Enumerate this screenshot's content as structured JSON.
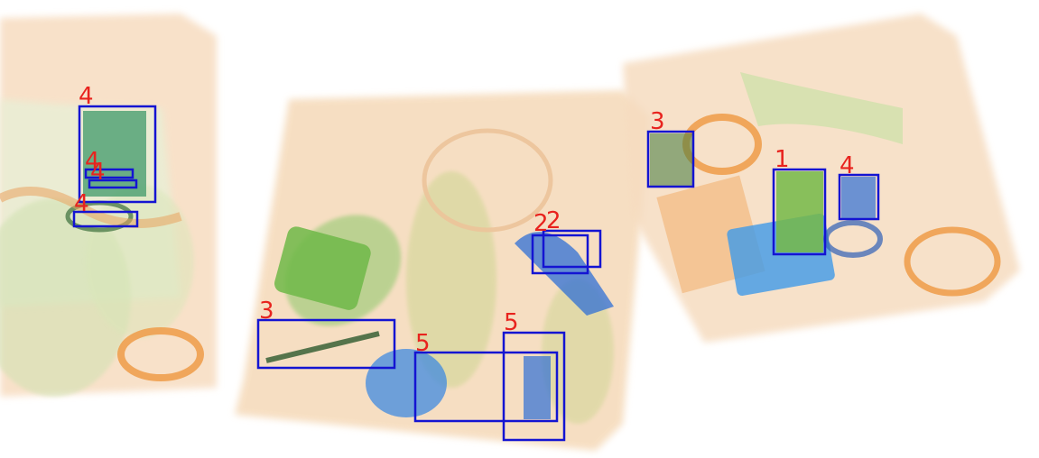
{
  "scene": {
    "type": "x-ray baggage scan",
    "palette": {
      "organic": "#f0a050",
      "mixed": "#7fbf5a",
      "metal": "#2f6fd6",
      "box_outline": "#1414d2",
      "label_text": "#e8231e"
    }
  },
  "detections": [
    {
      "label": "4"
    },
    {
      "label": "4"
    },
    {
      "label": "4"
    },
    {
      "label": "4"
    },
    {
      "label": "3"
    },
    {
      "label": "2"
    },
    {
      "label": "2"
    },
    {
      "label": "5"
    },
    {
      "label": "5"
    },
    {
      "label": "3"
    },
    {
      "label": "1"
    },
    {
      "label": "4"
    }
  ]
}
